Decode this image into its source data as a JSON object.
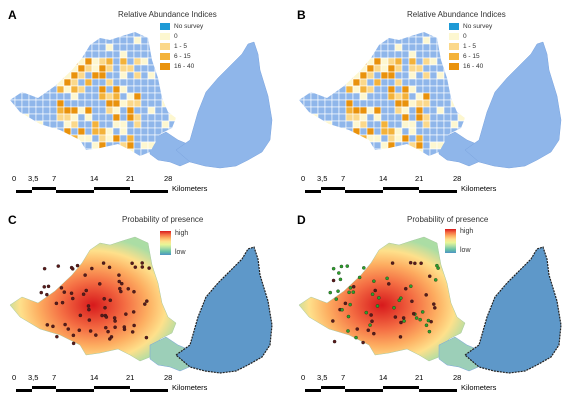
{
  "panels": [
    {
      "label": "A",
      "legend_title": "Relative Abundance Indices",
      "kind": "grid",
      "legend": [
        {
          "text": "No survey",
          "color": "#1e9ad6"
        },
        {
          "text": "0",
          "color": "#fdf7d0"
        },
        {
          "text": "1 - 5",
          "color": "#fbd88a"
        },
        {
          "text": "6 - 15",
          "color": "#f3b23a"
        },
        {
          "text": "16 - 40",
          "color": "#e9920c"
        }
      ]
    },
    {
      "label": "B",
      "legend_title": "Relative Abundance Indices",
      "kind": "grid",
      "legend": [
        {
          "text": "No survey",
          "color": "#1e9ad6"
        },
        {
          "text": "0",
          "color": "#fdf7d0"
        },
        {
          "text": "1 - 5",
          "color": "#fbd88a"
        },
        {
          "text": "6 - 15",
          "color": "#f3b23a"
        },
        {
          "text": "16 - 40",
          "color": "#e9920c"
        }
      ]
    },
    {
      "label": "C",
      "legend_title": "Probability of presence",
      "kind": "prob",
      "high": "high",
      "low": "low"
    },
    {
      "label": "D",
      "legend_title": "Probability of presence",
      "kind": "prob",
      "high": "high",
      "low": "low"
    }
  ],
  "scale_bar": {
    "ticks": [
      "0",
      "3,5",
      "7",
      "14",
      "21",
      "28"
    ],
    "unit": "Kilometers"
  },
  "colors": {
    "map_blue": "#8fb6ea",
    "grid_line": "#ffffff",
    "no_survey": "#1e9ad6"
  }
}
